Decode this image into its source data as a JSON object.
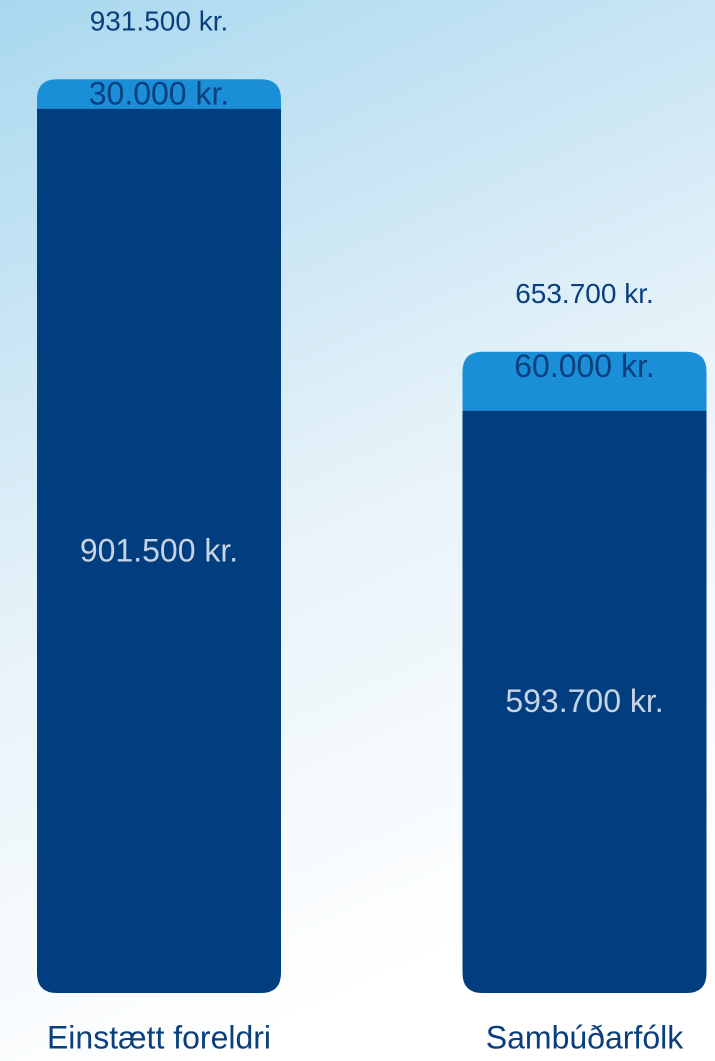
{
  "chart_data": {
    "type": "stacked-bar",
    "categories": [
      "Einstætt foreldri",
      "Sambúðarfólk"
    ],
    "series": [
      {
        "color": "#003e80",
        "values": [
          901500,
          593700
        ],
        "value_labels": [
          "901.500 kr.",
          "593.700 kr."
        ]
      },
      {
        "color": "#1a8fd8",
        "values": [
          30000,
          60000
        ],
        "value_labels": [
          "30.000 kr.",
          "60.000 kr."
        ]
      }
    ],
    "totals": {
      "values": [
        931500,
        653700
      ],
      "value_labels": [
        "931.500 kr.",
        "653.700 kr."
      ]
    },
    "ylim": [
      0,
      1000000
    ]
  }
}
